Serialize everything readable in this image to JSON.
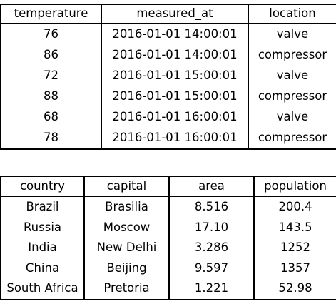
{
  "sensor_table": {
    "headers": [
      "temperature",
      "measured_at",
      "location"
    ],
    "rows": [
      [
        "76",
        "2016-01-01 14:00:01",
        "valve"
      ],
      [
        "86",
        "2016-01-01 14:00:01",
        "compressor"
      ],
      [
        "72",
        "2016-01-01 15:00:01",
        "valve"
      ],
      [
        "88",
        "2016-01-01 15:00:01",
        "compressor"
      ],
      [
        "68",
        "2016-01-01 16:00:01",
        "valve"
      ],
      [
        "78",
        "2016-01-01 16:00:01",
        "compressor"
      ]
    ]
  },
  "country_table": {
    "headers": [
      "country",
      "capital",
      "area",
      "population"
    ],
    "rows": [
      [
        "Brazil",
        "Brasilia",
        "8.516",
        "200.4"
      ],
      [
        "Russia",
        "Moscow",
        "17.10",
        "143.5"
      ],
      [
        "India",
        "New Delhi",
        "3.286",
        "1252"
      ],
      [
        "China",
        "Beijing",
        "9.597",
        "1357"
      ],
      [
        "South Africa",
        "Pretoria",
        "1.221",
        "52.98"
      ]
    ]
  }
}
